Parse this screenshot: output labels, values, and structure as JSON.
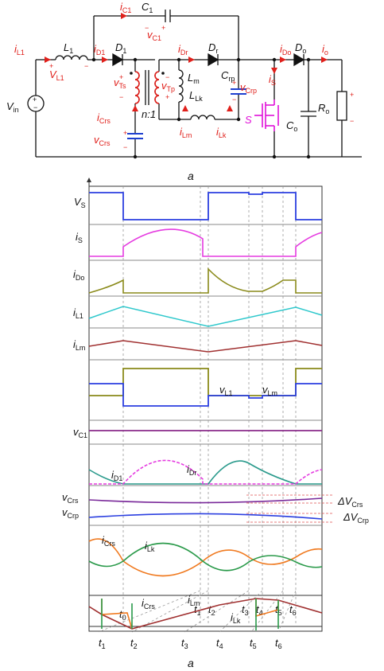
{
  "colors": {
    "current_red": "#e0201b",
    "cap_blue": "#1d3fd0",
    "switch_magenta": "#e010d8",
    "vs_blue": "#2b3fe0",
    "is_magenta": "#e53be0",
    "ido_olive": "#8a8a1a",
    "il1_cyan": "#2ec8cc",
    "ilm_brown": "#a03030",
    "vl1_olive": "#8a8a1a",
    "vlm_blue": "#2b3fe0",
    "vc1_purple": "#8a2a8a",
    "id1_teal": "#2a9a8c",
    "idr_magenta": "#e53be0",
    "vcrs_purple": "#7a2a9a",
    "vcrp_blue": "#2b3fe0",
    "icrs_orange": "#f07a20",
    "ilk_green": "#2a9a4a",
    "dash_red": "#e05050"
  },
  "circuit": {
    "caption": "a",
    "labels": {
      "iC1": {
        "m": "i",
        "s": "C1"
      },
      "C1": {
        "m": "C",
        "s": "1"
      },
      "vC1": {
        "m": "v",
        "s": "C1"
      },
      "iL1": {
        "m": "i",
        "s": "L1"
      },
      "L1": {
        "m": "L",
        "s": "1"
      },
      "VL1": {
        "m": "V",
        "s": "L1"
      },
      "iD1": {
        "m": "i",
        "s": "D1"
      },
      "D1": {
        "m": "D",
        "s": "1"
      },
      "iDr": {
        "m": "i",
        "s": "Dr"
      },
      "Dr": {
        "m": "D",
        "s": "r"
      },
      "iDo": {
        "m": "i",
        "s": "Do"
      },
      "Do": {
        "m": "D",
        "s": "o"
      },
      "io": {
        "m": "i",
        "s": "o"
      },
      "vTs": {
        "m": "v",
        "s": "Ts"
      },
      "vTp": {
        "m": "v",
        "s": "Tp"
      },
      "Lm": {
        "m": "L",
        "s": "m"
      },
      "Crp": {
        "m": "C",
        "s": "rp"
      },
      "vCrp": {
        "m": "v",
        "s": "Crp"
      },
      "iS": {
        "m": "i",
        "s": "S"
      },
      "LLk": {
        "m": "L",
        "s": "Lk"
      },
      "Vin": {
        "m": "V",
        "s": "in"
      },
      "ratio": "n:1",
      "iCrs": {
        "m": "i",
        "s": "Crs"
      },
      "vCrs": {
        "m": "v",
        "s": "Crs"
      },
      "iLm": {
        "m": "i",
        "s": "Lm"
      },
      "iLk": {
        "m": "i",
        "s": "Lk"
      },
      "S": "S",
      "Co": {
        "m": "C",
        "s": "o"
      },
      "Ro": {
        "m": "R",
        "s": "o"
      }
    }
  },
  "waveforms": {
    "caption": "a",
    "traces": [
      {
        "name": {
          "m": "V",
          "s": "S"
        }
      },
      {
        "name": {
          "m": "i",
          "s": "S"
        }
      },
      {
        "name": {
          "m": "i",
          "s": "Do"
        }
      },
      {
        "name": {
          "m": "i",
          "s": "L1"
        }
      },
      {
        "name": {
          "m": "i",
          "s": "Lm"
        }
      },
      {
        "name": {
          "m": "v",
          "s": "C1"
        }
      }
    ],
    "annotations": {
      "vL1": {
        "m": "v",
        "s": "L1"
      },
      "vLm": {
        "m": "v",
        "s": "Lm"
      },
      "iD1": {
        "m": "i",
        "s": "D1"
      },
      "iDr": {
        "m": "i",
        "s": "Dr"
      },
      "vCrs": {
        "m": "v",
        "s": "Crs"
      },
      "vCrp": {
        "m": "v",
        "s": "Crp"
      },
      "dVCrs": {
        "m": "ΔV",
        "s": "Crs"
      },
      "dVCrp": {
        "m": "ΔV",
        "s": "Crp"
      },
      "iCrs": {
        "m": "i",
        "s": "Crs"
      },
      "iLk": {
        "m": "i",
        "s": "Lk"
      }
    },
    "time_labels": [
      {
        "m": "t",
        "s": "0"
      },
      {
        "m": "t",
        "s": "1"
      },
      {
        "m": "t",
        "s": "2"
      },
      {
        "m": "t",
        "s": "3"
      },
      {
        "m": "t",
        "s": "4"
      },
      {
        "m": "t",
        "s": "5"
      },
      {
        "m": "t",
        "s": "6"
      }
    ]
  },
  "zoom": {
    "annotations": {
      "iCrs": {
        "m": "i",
        "s": "Crs"
      },
      "iLm": {
        "m": "i",
        "s": "Lm"
      },
      "iLk": {
        "m": "i",
        "s": "Lk"
      }
    },
    "time_labels": [
      {
        "m": "t",
        "s": "1"
      },
      {
        "m": "t",
        "s": "2"
      },
      {
        "m": "t",
        "s": "3"
      },
      {
        "m": "t",
        "s": "4"
      },
      {
        "m": "t",
        "s": "5"
      },
      {
        "m": "t",
        "s": "6"
      }
    ]
  }
}
